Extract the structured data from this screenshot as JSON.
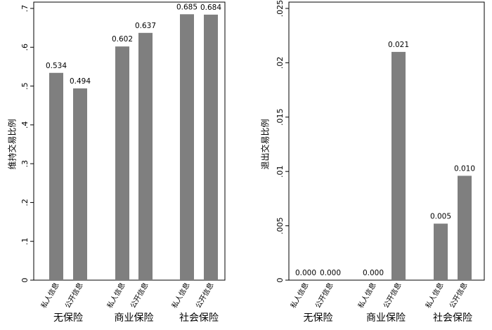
{
  "chart_data": [
    {
      "type": "bar",
      "ylabel": "维持交易比例",
      "ylim": [
        0,
        0.7
      ],
      "yticks": [
        0,
        0.1,
        0.2,
        0.3,
        0.4,
        0.5,
        0.6,
        0.7
      ],
      "ytick_labels": [
        "0",
        ".1",
        ".2",
        ".3",
        ".4",
        ".5",
        ".6",
        ".7"
      ],
      "groups": [
        {
          "label": "无保险",
          "bars": [
            {
              "category": "私人信息",
              "value": 0.534,
              "label": "0.534"
            },
            {
              "category": "公开信息",
              "value": 0.494,
              "label": "0.494"
            }
          ]
        },
        {
          "label": "商业保险",
          "bars": [
            {
              "category": "私人信息",
              "value": 0.602,
              "label": "0.602"
            },
            {
              "category": "公开信息",
              "value": 0.637,
              "label": "0.637"
            }
          ]
        },
        {
          "label": "社会保险",
          "bars": [
            {
              "category": "私人信息",
              "value": 0.685,
              "label": "0.685"
            },
            {
              "category": "公开信息",
              "value": 0.684,
              "label": "0.684"
            }
          ]
        }
      ],
      "bar_color": "#7f7f7f",
      "grid": false
    },
    {
      "type": "bar",
      "ylabel": "退出交易比例",
      "ylim": [
        0,
        0.025
      ],
      "yticks": [
        0,
        0.005,
        0.01,
        0.015,
        0.02,
        0.025
      ],
      "ytick_labels": [
        "0",
        ".005",
        ".01",
        ".015",
        ".02",
        ".025"
      ],
      "groups": [
        {
          "label": "无保险",
          "bars": [
            {
              "category": "私人信息",
              "value": 0.0,
              "label": "0.000"
            },
            {
              "category": "公开信息",
              "value": 0.0,
              "label": "0.000"
            }
          ]
        },
        {
          "label": "商业保险",
          "bars": [
            {
              "category": "私人信息",
              "value": 0.0,
              "label": "0.000"
            },
            {
              "category": "公开信息",
              "value": 0.021,
              "label": "0.021"
            }
          ]
        },
        {
          "label": "社会保险",
          "bars": [
            {
              "category": "私人信息",
              "value": 0.0052,
              "label": "0.005"
            },
            {
              "category": "公开信息",
              "value": 0.0096,
              "label": "0.010"
            }
          ]
        }
      ],
      "bar_color": "#7f7f7f",
      "grid": false
    }
  ]
}
